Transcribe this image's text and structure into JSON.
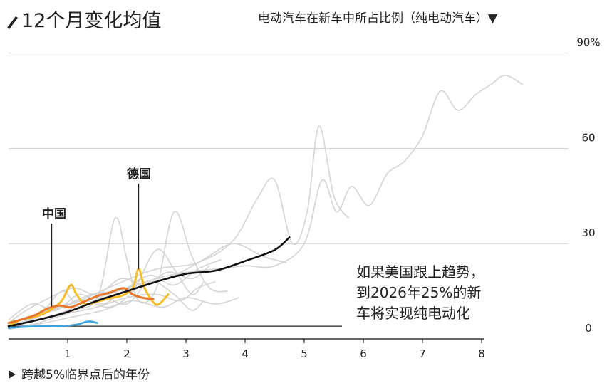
{
  "title": "12个月变化均值",
  "subtitle": "电动汽车在新车中所占比例（纯电动汽车）▼",
  "colors": {
    "grid": "#cfcfcf",
    "others": "#d4d4d4",
    "us": "#111111",
    "china": "#e6782e",
    "germany": "#f2be2a",
    "blue": "#3aa4dd",
    "axis": "#333333"
  },
  "chart_data": {
    "type": "line",
    "title": "12个月变化均值",
    "ylabel": "电动汽车在新车中所占比例（纯电动汽车）",
    "xlabel": "跨越5%临界点后的年份",
    "xlim": [
      0,
      8
    ],
    "ylim": [
      0,
      90
    ],
    "x_ticks": [
      1,
      2,
      3,
      4,
      5,
      6,
      7,
      8
    ],
    "y_ticks": [
      {
        "v": 0,
        "label": "0"
      },
      {
        "v": 30,
        "label": "30"
      },
      {
        "v": 60,
        "label": "60"
      },
      {
        "v": 90,
        "label": "90%"
      }
    ],
    "grid": "horizontal",
    "series": [
      {
        "name": "中国",
        "role": "china",
        "points": [
          [
            0,
            5
          ],
          [
            0.2,
            6
          ],
          [
            0.45,
            7.5
          ],
          [
            0.65,
            9.5
          ],
          [
            0.85,
            10.5
          ],
          [
            1.05,
            10
          ],
          [
            1.25,
            11.5
          ],
          [
            1.5,
            13.5
          ],
          [
            1.7,
            14.5
          ],
          [
            1.95,
            16
          ],
          [
            2.1,
            14
          ],
          [
            2.25,
            13
          ],
          [
            2.45,
            12.5
          ]
        ]
      },
      {
        "name": "德国",
        "role": "germany",
        "points": [
          [
            0,
            4
          ],
          [
            0.2,
            6
          ],
          [
            0.45,
            7
          ],
          [
            0.7,
            9
          ],
          [
            0.9,
            12
          ],
          [
            1.05,
            17
          ],
          [
            1.15,
            14
          ],
          [
            1.3,
            11
          ],
          [
            1.55,
            12
          ],
          [
            1.75,
            13
          ],
          [
            1.9,
            13.5
          ],
          [
            2.1,
            16
          ],
          [
            2.2,
            22
          ],
          [
            2.3,
            16
          ],
          [
            2.45,
            11.5
          ],
          [
            2.55,
            11
          ],
          [
            2.7,
            14
          ]
        ]
      },
      {
        "name": "",
        "role": "us",
        "points": [
          [
            0,
            4
          ],
          [
            0.5,
            6
          ],
          [
            1,
            8.5
          ],
          [
            1.5,
            12
          ],
          [
            2,
            15
          ],
          [
            2.5,
            18
          ],
          [
            3,
            20.5
          ],
          [
            3.5,
            21.5
          ],
          [
            4,
            24.5
          ],
          [
            4.5,
            28
          ],
          [
            4.75,
            32
          ]
        ]
      },
      {
        "name": "",
        "role": "blue",
        "points": [
          [
            0,
            3.5
          ],
          [
            0.5,
            4
          ],
          [
            0.9,
            4
          ],
          [
            1.15,
            4.5
          ],
          [
            1.35,
            5.5
          ],
          [
            1.5,
            5
          ]
        ]
      },
      {
        "name": "",
        "role": "other",
        "points": [
          [
            0,
            4
          ],
          [
            0.5,
            7
          ],
          [
            1,
            11
          ],
          [
            1.5,
            13
          ],
          [
            2,
            16
          ],
          [
            2.5,
            19
          ],
          [
            3,
            21
          ],
          [
            3.5,
            22
          ],
          [
            4,
            23
          ],
          [
            4.5,
            23
          ],
          [
            5,
            30
          ],
          [
            5.3,
            50
          ],
          [
            5.55,
            40
          ],
          [
            5.8,
            48
          ],
          [
            6.1,
            42
          ],
          [
            6.4,
            52
          ],
          [
            6.7,
            56
          ],
          [
            7,
            64
          ],
          [
            7.3,
            78
          ],
          [
            7.6,
            72
          ],
          [
            7.9,
            77
          ],
          [
            8.15,
            80
          ],
          [
            8.4,
            83
          ],
          [
            8.7,
            80
          ]
        ]
      },
      {
        "name": "",
        "role": "other",
        "points": [
          [
            0,
            5
          ],
          [
            0.6,
            8
          ],
          [
            1.2,
            12
          ],
          [
            1.8,
            17
          ],
          [
            2.5,
            22
          ],
          [
            3.2,
            24
          ],
          [
            3.8,
            31
          ],
          [
            4.2,
            44
          ],
          [
            4.5,
            50
          ],
          [
            4.8,
            30
          ],
          [
            5.05,
            40
          ],
          [
            5.25,
            67
          ],
          [
            5.5,
            45
          ],
          [
            5.75,
            38
          ]
        ]
      },
      {
        "name": "",
        "role": "other",
        "points": [
          [
            0,
            4
          ],
          [
            0.5,
            6
          ],
          [
            1,
            9
          ],
          [
            1.5,
            13
          ],
          [
            1.8,
            38
          ],
          [
            2.0,
            25
          ],
          [
            2.2,
            12
          ],
          [
            2.5,
            16
          ],
          [
            2.8,
            40
          ],
          [
            3.1,
            26
          ],
          [
            3.4,
            16
          ],
          [
            3.7,
            15
          ]
        ]
      },
      {
        "name": "",
        "role": "other",
        "points": [
          [
            0,
            5
          ],
          [
            0.5,
            8
          ],
          [
            1,
            11
          ],
          [
            1.4,
            14
          ],
          [
            1.8,
            15
          ],
          [
            2.3,
            17
          ],
          [
            2.8,
            20
          ],
          [
            3.3,
            25
          ],
          [
            3.8,
            30
          ],
          [
            4.3,
            26
          ],
          [
            4.7,
            24
          ]
        ]
      },
      {
        "name": "",
        "role": "other",
        "points": [
          [
            0,
            3
          ],
          [
            0.5,
            5
          ],
          [
            1,
            8
          ],
          [
            1.5,
            10
          ],
          [
            2,
            13
          ],
          [
            2.5,
            14
          ],
          [
            2.9,
            12
          ],
          [
            3.2,
            16
          ],
          [
            3.5,
            18
          ]
        ]
      },
      {
        "name": "",
        "role": "other",
        "points": [
          [
            0,
            6
          ],
          [
            0.4,
            11
          ],
          [
            0.8,
            9
          ],
          [
            1.2,
            14
          ],
          [
            1.6,
            11
          ],
          [
            2,
            16
          ],
          [
            2.4,
            20
          ],
          [
            2.8,
            17
          ],
          [
            3.2,
            22
          ],
          [
            3.6,
            25
          ]
        ]
      },
      {
        "name": "",
        "role": "other",
        "points": [
          [
            0,
            4
          ],
          [
            0.5,
            7
          ],
          [
            0.9,
            15
          ],
          [
            1.2,
            10
          ],
          [
            1.6,
            13
          ],
          [
            2.0,
            11
          ],
          [
            2.4,
            18
          ],
          [
            2.8,
            14
          ],
          [
            3.1,
            9
          ],
          [
            3.3,
            12
          ]
        ]
      },
      {
        "name": "",
        "role": "other",
        "points": [
          [
            0,
            3
          ],
          [
            0.6,
            5
          ],
          [
            1.1,
            7
          ],
          [
            1.6,
            9
          ],
          [
            2.1,
            12
          ],
          [
            2.6,
            10
          ],
          [
            3.0,
            13
          ],
          [
            3.5,
            11
          ],
          [
            3.9,
            13
          ]
        ]
      },
      {
        "name": "",
        "role": "other",
        "points": [
          [
            0,
            5
          ],
          [
            0.3,
            9
          ],
          [
            0.7,
            13
          ],
          [
            1.1,
            16
          ],
          [
            1.5,
            14
          ],
          [
            1.9,
            19
          ],
          [
            2.3,
            17
          ],
          [
            2.7,
            21
          ],
          [
            3.1,
            19
          ],
          [
            3.4,
            23
          ]
        ]
      },
      {
        "name": "",
        "role": "other",
        "points": [
          [
            0,
            4
          ],
          [
            0.5,
            6
          ],
          [
            1,
            9
          ],
          [
            1.3,
            12
          ],
          [
            1.7,
            10
          ],
          [
            2.1,
            15
          ],
          [
            2.5,
            28
          ],
          [
            2.8,
            22
          ],
          [
            3.1,
            14
          ],
          [
            3.3,
            18
          ]
        ]
      }
    ],
    "annotations": [
      {
        "text_lines": [
          "如果美国跟上趋势，",
          "到2026年25%的新",
          "车将实现纯电动化"
        ]
      }
    ],
    "benchmark_line": {
      "y": 4
    }
  }
}
